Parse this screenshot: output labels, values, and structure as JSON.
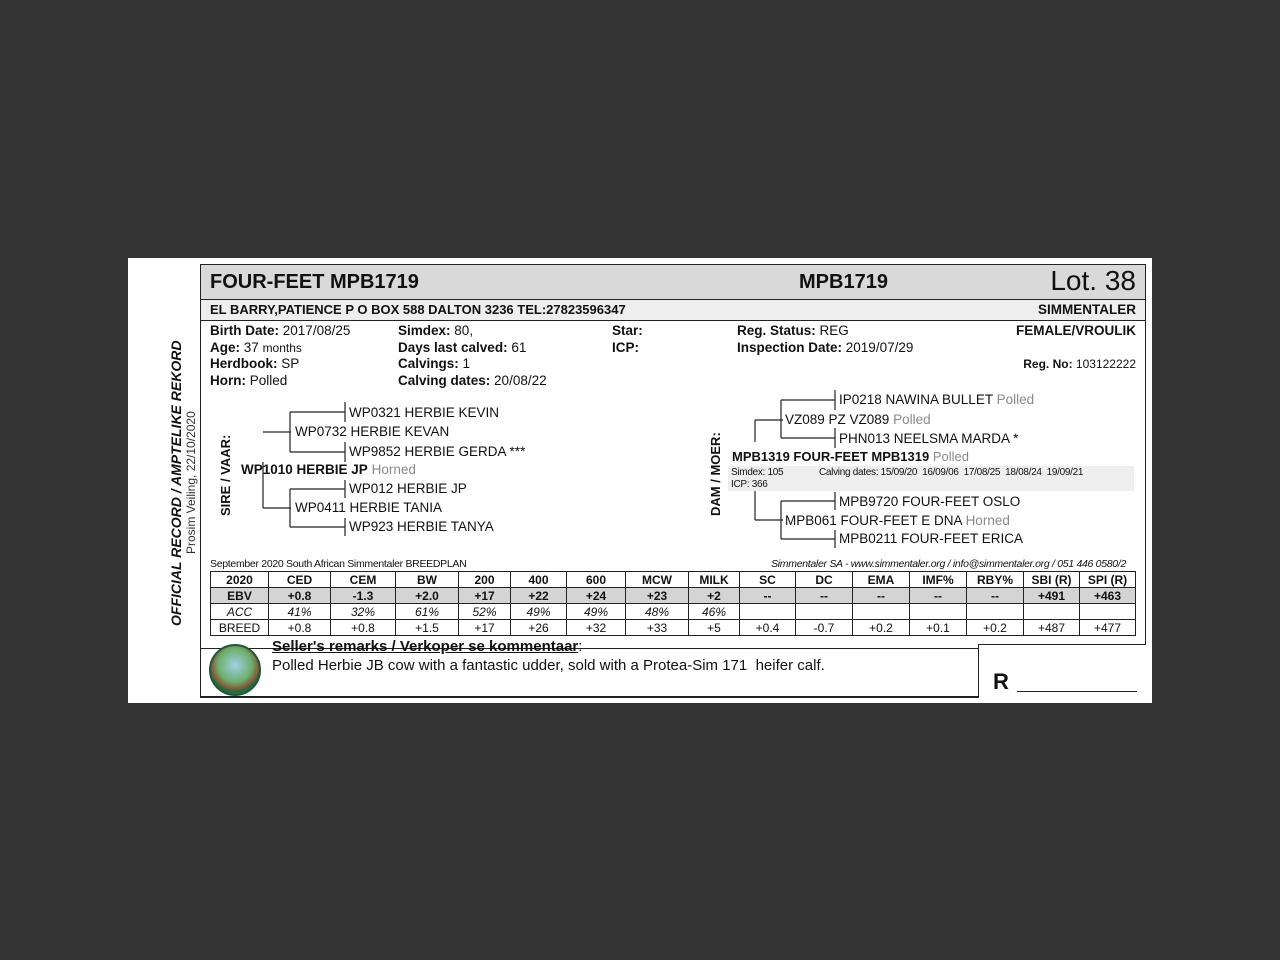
{
  "side": {
    "official": "OFFICIAL RECORD / AMPTELIKE REKORD",
    "sale": "Prosim Veiling, 22/10/2020"
  },
  "header": {
    "name": "FOUR-FEET MPB1719",
    "id": "MPB1719",
    "lot": "Lot. 38"
  },
  "owner": {
    "address": "EL BARRY,PATIENCE P O BOX 588 DALTON 3236 TEL:27823596347",
    "breed": "SIMMENTALER"
  },
  "info": {
    "birth_label": "Birth Date:",
    "birth": "2017/08/25",
    "age_label": "Age:",
    "age": "37",
    "age_unit": "months",
    "herdbook_label": "Herdbook:",
    "herdbook": "SP",
    "horn_label": "Horn:",
    "horn": "Polled",
    "simdex_label": "Simdex:",
    "simdex": "80,",
    "days_label": "Days last calved:",
    "days": "61",
    "calvings_label": "Calvings:",
    "calvings": "1",
    "cdates_label": "Calving dates:",
    "cdates": "20/08/22",
    "star_label": "Star:",
    "icp_label": "ICP:",
    "regstatus_label": "Reg. Status:",
    "regstatus": "REG",
    "insp_label": "Inspection Date:",
    "insp": "2019/07/29",
    "sex": "FEMALE/VROULIK",
    "regno_label": "Reg. No:",
    "regno": "103122222"
  },
  "sire": {
    "label": "SIRE / VAAR:",
    "name": "WP1010 HERBIE JP",
    "horn": "Horned",
    "sire": "WP0732 HERBIE KEVAN",
    "ss": "WP0321 HERBIE KEVIN",
    "sd": "WP9852 HERBIE GERDA ***",
    "dam": "WP0411 HERBIE TANIA",
    "ds": "WP012 HERBIE JP",
    "dd": "WP923 HERBIE TANYA"
  },
  "dam": {
    "label": "DAM / MOER:",
    "name": "MPB1319 FOUR-FEET MPB1319",
    "horn": "Polled",
    "simdex": "Simdex: 105",
    "icp": "ICP: 366",
    "calving": "Calving dates: 15/09/20  16/09/06  17/08/25  18/08/24  19/09/21",
    "sire": "VZ089 PZ VZ089",
    "sire_horn": "Polled",
    "ss": "IP0218 NAWINA BULLET",
    "ss_horn": "Polled",
    "sd": "PHN013 NEELSMA MARDA *",
    "dam": "MPB061 FOUR-FEET E DNA",
    "dam_horn": "Horned",
    "ds": "MPB9720 FOUR-FEET OSLO",
    "dd": "MPB0211 FOUR-FEET ERICA"
  },
  "breedplan": {
    "title": "September 2020 South African Simmentaler BREEDPLAN",
    "contact": "Simmentaler SA - www.simmentaler.org / info@simmentaler.org / 051 446 0580/2",
    "headers": [
      "2020",
      "CED",
      "CEM",
      "BW",
      "200",
      "400",
      "600",
      "MCW",
      "MILK",
      "SC",
      "DC",
      "EMA",
      "IMF%",
      "RBY%",
      "SBI (R)",
      "SPI (R)"
    ],
    "ebv": [
      "EBV",
      "+0.8",
      "-1.3",
      "+2.0",
      "+17",
      "+22",
      "+24",
      "+23",
      "+2",
      "--",
      "--",
      "--",
      "--",
      "--",
      "+491",
      "+463"
    ],
    "acc": [
      "ACC",
      "41%",
      "32%",
      "61%",
      "52%",
      "49%",
      "49%",
      "48%",
      "46%",
      "",
      "",
      "",
      "",
      "",
      "",
      ""
    ],
    "breed": [
      "BREED",
      "+0.8",
      "+0.8",
      "+1.5",
      "+17",
      "+26",
      "+32",
      "+33",
      "+5",
      "+0.4",
      "-0.7",
      "+0.2",
      "+0.1",
      "+0.2",
      "+487",
      "+477"
    ]
  },
  "remarks": {
    "title": "Seller's remarks / Verkoper se kommentaar",
    "colon": ":",
    "text": "Polled Herbie JB cow with a fantastic udder, sold with a Protea-Sim 171  heifer calf."
  },
  "price": {
    "currency": "R"
  }
}
